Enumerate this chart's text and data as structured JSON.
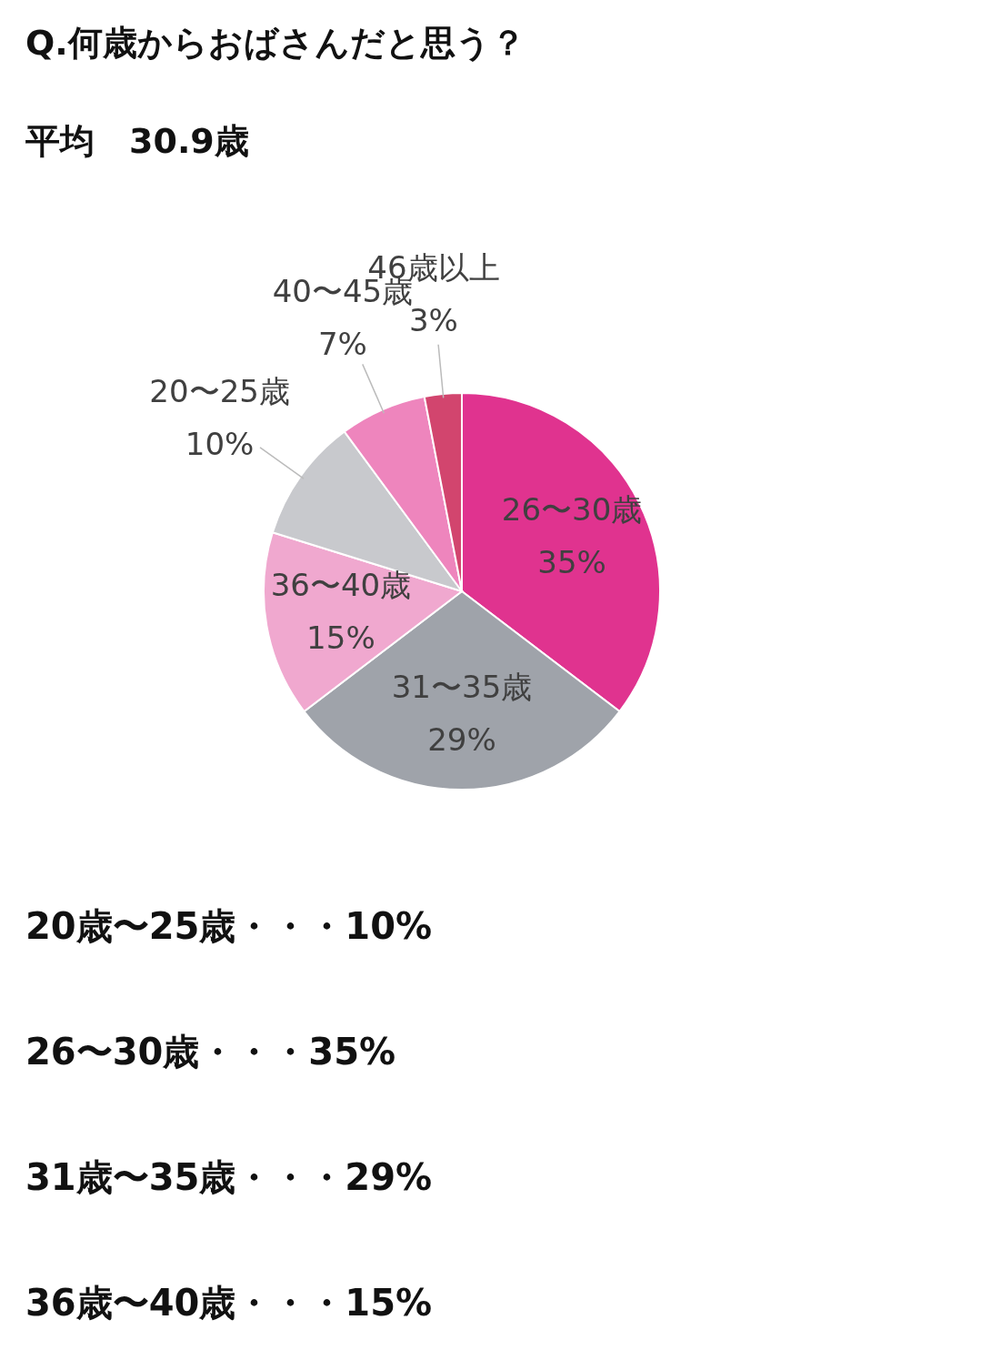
{
  "chart_data": {
    "type": "pie",
    "title": "Q.何歳からおばさんだと思う？",
    "subtitle": "平均　30.9歳",
    "categories": [
      "26〜30歳",
      "31〜35歳",
      "36〜40歳",
      "20〜25歳",
      "40〜45歳",
      "46歳以上"
    ],
    "values": [
      35,
      29,
      15,
      10,
      7,
      3
    ],
    "value_labels": [
      "35%",
      "29%",
      "15%",
      "10%",
      "7%",
      "3%"
    ],
    "colors": [
      "#e0338f",
      "#9fa3aa",
      "#f0a8cf",
      "#c8c9cd",
      "#ee85bd",
      "#d2456e"
    ],
    "legend": false,
    "annotations": [
      "20歳〜25歳・・・10%",
      "26〜30歳・・・35%",
      "31歳〜35歳・・・29%",
      "36歳〜40歳・・・15%"
    ]
  }
}
